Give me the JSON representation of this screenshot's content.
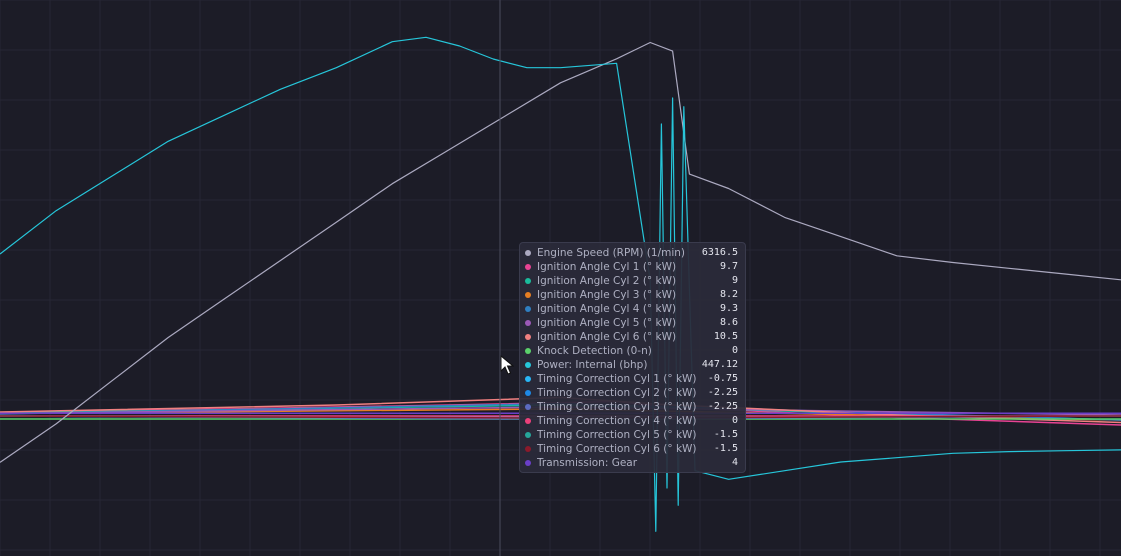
{
  "chart_data": {
    "type": "line",
    "title": "",
    "xlabel": "",
    "ylabel": "",
    "grid": true,
    "legend": "none",
    "series": [
      {
        "name": "Engine Speed (RPM) (1/min)",
        "color": "#aba9c0",
        "x": [
          0,
          0.05,
          0.1,
          0.15,
          0.2,
          0.25,
          0.3,
          0.35,
          0.4,
          0.45,
          0.5,
          0.55,
          0.58,
          0.6,
          0.615,
          0.65,
          0.7,
          0.75,
          0.8,
          0.85,
          0.9,
          0.95,
          1.0
        ],
        "y": [
          2800,
          3200,
          3650,
          4100,
          4500,
          4900,
          5300,
          5700,
          6050,
          6400,
          6750,
          7000,
          7170,
          7080,
          5800,
          5650,
          5350,
          5150,
          4950,
          4880,
          4820,
          4760,
          4700
        ]
      },
      {
        "name": "Power: Internal (bhp)",
        "color": "#26c6da",
        "x": [
          0,
          0.05,
          0.1,
          0.15,
          0.2,
          0.25,
          0.3,
          0.35,
          0.38,
          0.41,
          0.44,
          0.47,
          0.5,
          0.55,
          0.58,
          0.585,
          0.59,
          0.595,
          0.6,
          0.605,
          0.61,
          0.62,
          0.65,
          0.7,
          0.75,
          0.8,
          0.85,
          0.9,
          0.95,
          1.0
        ],
        "y": [
          330,
          380,
          420,
          460,
          490,
          520,
          545,
          575,
          580,
          570,
          555,
          545,
          545,
          550,
          300,
          10,
          480,
          60,
          510,
          40,
          500,
          80,
          70,
          80,
          90,
          95,
          100,
          102,
          103,
          104
        ]
      },
      {
        "name": "Ignition Angle Cyl 1 (° kW)",
        "color": "#e84393",
        "x": [
          0,
          0.2,
          0.4,
          0.55,
          0.6,
          0.8,
          1.0
        ],
        "y": [
          7.5,
          8.2,
          9.0,
          9.7,
          8.5,
          6.5,
          5.0
        ]
      },
      {
        "name": "Ignition Angle Cyl 2 (° kW)",
        "color": "#1abc9c",
        "x": [
          0,
          0.5,
          1.0
        ],
        "y": [
          7.4,
          9.0,
          6.0
        ]
      },
      {
        "name": "Ignition Angle Cyl 3 (° kW)",
        "color": "#e67e22",
        "x": [
          0,
          0.5,
          1.0
        ],
        "y": [
          7.3,
          8.2,
          6.0
        ]
      },
      {
        "name": "Ignition Angle Cyl 4 (° kW)",
        "color": "#2f7fc1",
        "x": [
          0,
          0.5,
          1.0
        ],
        "y": [
          7.2,
          9.3,
          6.0
        ]
      },
      {
        "name": "Ignition Angle Cyl 5 (° kW)",
        "color": "#9b59b6",
        "x": [
          0,
          0.5,
          1.0
        ],
        "y": [
          7.3,
          8.6,
          7.0
        ]
      },
      {
        "name": "Ignition Angle Cyl 6 (° kW)",
        "color": "#f08080",
        "x": [
          0,
          0.3,
          0.5,
          0.6,
          0.8,
          1.0
        ],
        "y": [
          7.6,
          9.0,
          10.5,
          9.0,
          7.0,
          5.5
        ]
      },
      {
        "name": "Knock Detection (0-n)",
        "color": "#5bd16b",
        "x": [
          0,
          1.0
        ],
        "y": [
          0,
          0
        ]
      },
      {
        "name": "Timing Correction Cyl 1 (° kW)",
        "color": "#29b6f6",
        "x": [
          0,
          0.5,
          1.0
        ],
        "y": [
          0,
          -0.75,
          0
        ]
      },
      {
        "name": "Timing Correction Cyl 2 (° kW)",
        "color": "#1e88e5",
        "x": [
          0,
          0.5,
          1.0
        ],
        "y": [
          0,
          -2.25,
          0
        ]
      },
      {
        "name": "Timing Correction Cyl 3 (° kW)",
        "color": "#5c6bc0",
        "x": [
          0,
          0.5,
          1.0
        ],
        "y": [
          0,
          -2.25,
          0
        ]
      },
      {
        "name": "Timing Correction Cyl 4 (° kW)",
        "color": "#ec407a",
        "x": [
          0,
          0.5,
          1.0
        ],
        "y": [
          0,
          0,
          0
        ]
      },
      {
        "name": "Timing Correction Cyl 5 (° kW)",
        "color": "#26a69a",
        "x": [
          0,
          0.5,
          1.0
        ],
        "y": [
          0,
          -1.5,
          0
        ]
      },
      {
        "name": "Timing Correction Cyl 6 (° kW)",
        "color": "#8b1a2b",
        "x": [
          0,
          0.5,
          1.0
        ],
        "y": [
          0,
          -1.5,
          0
        ]
      },
      {
        "name": "Transmission: Gear",
        "color": "#6a3fc8",
        "x": [
          0,
          1.0
        ],
        "y": [
          4,
          4
        ]
      }
    ]
  },
  "tooltip": {
    "rows": [
      {
        "label": "Engine Speed (RPM) (1/min)",
        "value": "6316.5",
        "color": "#aba9c0"
      },
      {
        "label": "Ignition Angle Cyl 1 (° kW)",
        "value": "9.7",
        "color": "#e84393"
      },
      {
        "label": "Ignition Angle Cyl 2 (° kW)",
        "value": "9",
        "color": "#1abc9c"
      },
      {
        "label": "Ignition Angle Cyl 3 (° kW)",
        "value": "8.2",
        "color": "#e67e22"
      },
      {
        "label": "Ignition Angle Cyl 4 (° kW)",
        "value": "9.3",
        "color": "#2f7fc1"
      },
      {
        "label": "Ignition Angle Cyl 5 (° kW)",
        "value": "8.6",
        "color": "#9b59b6"
      },
      {
        "label": "Ignition Angle Cyl 6 (° kW)",
        "value": "10.5",
        "color": "#f08080"
      },
      {
        "label": "Knock Detection (0-n)",
        "value": "0",
        "color": "#5bd16b"
      },
      {
        "label": "Power: Internal (bhp)",
        "value": "447.12",
        "color": "#26c6da"
      },
      {
        "label": "Timing Correction Cyl 1 (° kW)",
        "value": "-0.75",
        "color": "#29b6f6"
      },
      {
        "label": "Timing Correction Cyl 2 (° kW)",
        "value": "-2.25",
        "color": "#1e88e5"
      },
      {
        "label": "Timing Correction Cyl 3 (° kW)",
        "value": "-2.25",
        "color": "#5c6bc0"
      },
      {
        "label": "Timing Correction Cyl 4 (° kW)",
        "value": "0",
        "color": "#ec407a"
      },
      {
        "label": "Timing Correction Cyl 5 (° kW)",
        "value": "-1.5",
        "color": "#26a69a"
      },
      {
        "label": "Timing Correction Cyl 6 (° kW)",
        "value": "-1.5",
        "color": "#8b1a2b"
      },
      {
        "label": "Transmission: Gear",
        "value": "4",
        "color": "#6a3fc8"
      }
    ]
  },
  "colors": {
    "background": "#1c1c27",
    "grid": "#262634",
    "crosshair": "#4a4b5c",
    "tooltip_bg": "#2a2b39"
  },
  "icons": {
    "cursor": "mouse-pointer-icon"
  }
}
